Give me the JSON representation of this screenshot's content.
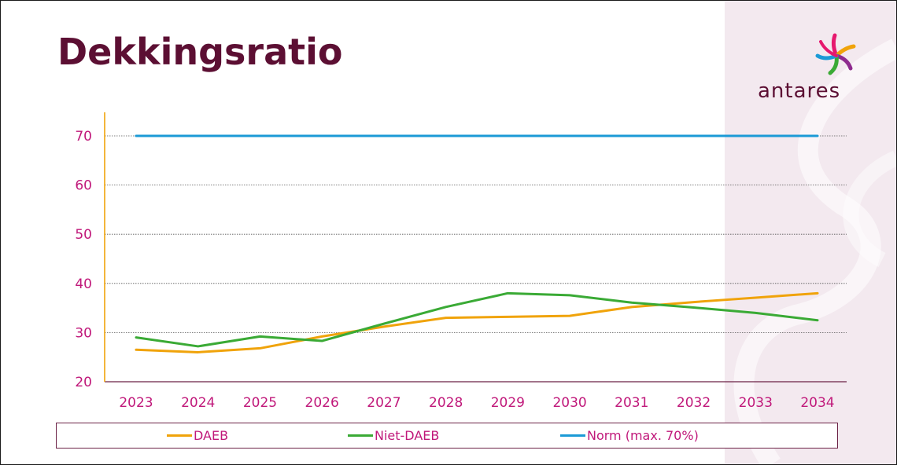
{
  "title": "Dekkingsratio",
  "logo": {
    "text": "antares",
    "icon": "antares-flower-logo"
  },
  "colors": {
    "title": "#5c0f33",
    "ticks": "#c0187a",
    "daeb": "#f0a30a",
    "niet_daeb": "#3aaa35",
    "norm": "#1b9ad6",
    "y_axis": "#f0a30a",
    "background_deco": "#f3e9ef"
  },
  "chart_data": {
    "type": "line",
    "x": [
      "2023",
      "2024",
      "2025",
      "2026",
      "2027",
      "2028",
      "2029",
      "2030",
      "2031",
      "2032",
      "2033",
      "2034"
    ],
    "ylim": [
      20,
      70
    ],
    "yticks": [
      20,
      30,
      40,
      50,
      60,
      70
    ],
    "grid": true,
    "legend_position": "bottom",
    "series": [
      {
        "name": "DAEB",
        "color": "#f0a30a",
        "values": [
          26.5,
          26.0,
          26.8,
          29.2,
          31.2,
          33.0,
          33.2,
          33.4,
          35.2,
          36.2,
          37.1,
          38.0
        ]
      },
      {
        "name": "Niet-DAEB",
        "color": "#3aaa35",
        "values": [
          29.0,
          27.2,
          29.2,
          28.3,
          31.8,
          35.2,
          38.0,
          37.6,
          36.1,
          35.1,
          34.0,
          32.5
        ]
      },
      {
        "name": "Norm (max. 70%)",
        "color": "#1b9ad6",
        "values": [
          70,
          70,
          70,
          70,
          70,
          70,
          70,
          70,
          70,
          70,
          70,
          70
        ]
      }
    ]
  }
}
